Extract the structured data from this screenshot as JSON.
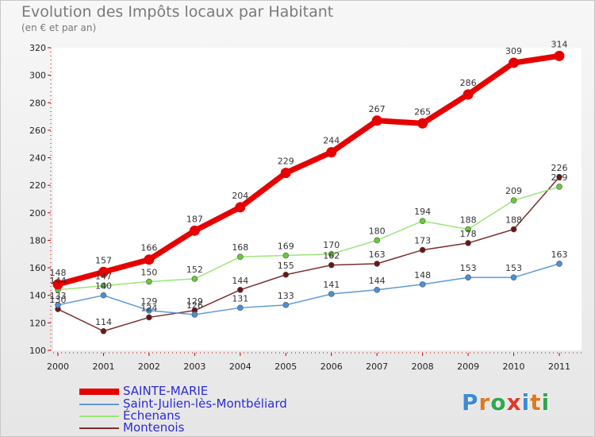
{
  "title": "Evolution des Impôts locaux par Habitant",
  "subtitle": "(en € et par an)",
  "logo": {
    "letters": [
      "P",
      "r",
      "o",
      "x",
      "i",
      "t",
      "i"
    ],
    "colors": [
      "#3d8bd8",
      "#e07820",
      "#2fa84f",
      "#e03a2a",
      "#3d8bd8",
      "#e07820",
      "#2fa84f"
    ]
  },
  "chart_data": {
    "type": "line",
    "title": "Evolution des Impôts locaux par Habitant",
    "subtitle": "(en € et par an)",
    "xlabel": "",
    "ylabel": "",
    "ylim": [
      100,
      320
    ],
    "y_ticks": [
      100,
      120,
      140,
      160,
      180,
      200,
      220,
      240,
      260,
      280,
      300,
      320
    ],
    "categories": [
      "2000",
      "2001",
      "2002",
      "2003",
      "2004",
      "2005",
      "2006",
      "2007",
      "2008",
      "2009",
      "2010",
      "2011"
    ],
    "grid": false,
    "legend_position": "bottom-left",
    "series": [
      {
        "name": "SAINTE-MARIE",
        "color": "#e60000",
        "marker": "#e60000",
        "values": [
          148,
          157,
          166,
          187,
          204,
          229,
          244,
          267,
          265,
          286,
          309,
          314
        ],
        "labels": [
          "148",
          "157",
          "166",
          "187",
          "204",
          "229",
          "244",
          "267",
          "265",
          "286",
          "309",
          "314"
        ],
        "bold": true
      },
      {
        "name": "Saint-Julien-lès-Montbéliard",
        "color": "#5b9bd5",
        "marker": "#4b8fd6",
        "values": [
          133,
          140,
          129,
          126,
          131,
          133,
          141,
          144,
          148,
          153,
          153,
          163
        ],
        "labels": [
          "133",
          "140",
          "129",
          "126",
          "131",
          "133",
          "141",
          "144",
          "148",
          "153",
          "153",
          "163"
        ],
        "bold": false
      },
      {
        "name": "Échenans",
        "color": "#9be67a",
        "marker": "#66cc33",
        "values": [
          144,
          147,
          150,
          152,
          168,
          169,
          170,
          180,
          194,
          188,
          209,
          219
        ],
        "labels": [
          "144",
          "147",
          "150",
          "152",
          "168",
          "169",
          "170",
          "180",
          "194",
          "188",
          "209",
          "219"
        ],
        "bold": false
      },
      {
        "name": "Montenois",
        "color": "#7a2e2e",
        "marker": "#6b1616",
        "values": [
          130,
          114,
          124,
          129,
          144,
          155,
          162,
          163,
          173,
          178,
          188,
          226
        ],
        "labels": [
          "130",
          "114",
          "124",
          "129",
          "144",
          "155",
          "162",
          "163",
          "173",
          "178",
          "188",
          "226"
        ],
        "bold": false
      }
    ]
  }
}
